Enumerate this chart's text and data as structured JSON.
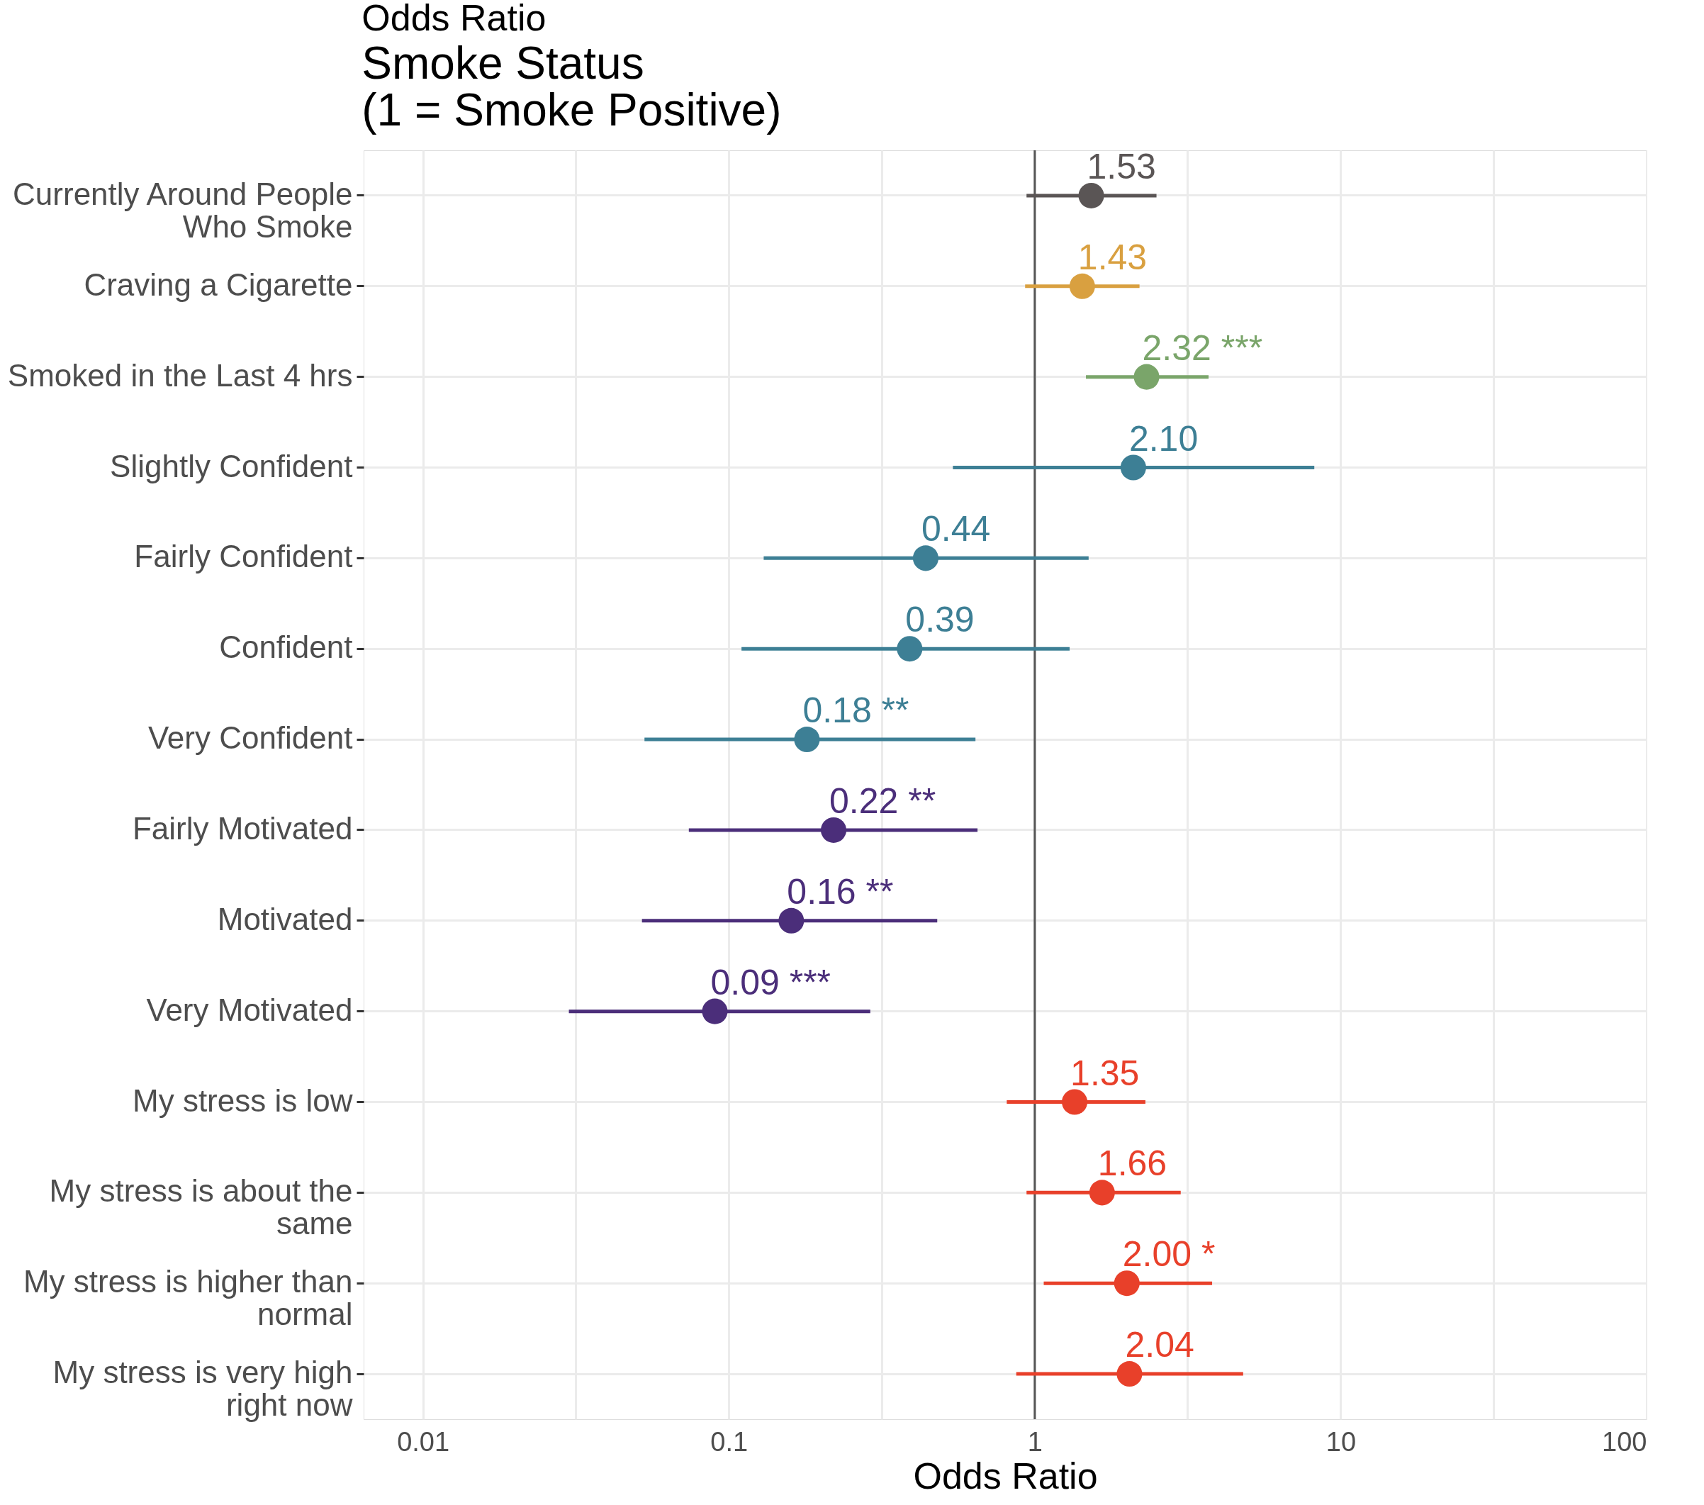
{
  "chart_data": {
    "type": "scatter",
    "orientation": "horizontal",
    "title": "Odds Ratio",
    "subtitle": [
      "Smoke Status",
      " (1 = Smoke Positive)"
    ],
    "xlabel": "Odds Ratio",
    "log": "x",
    "grid": true,
    "marker": "circle",
    "categories": [
      "Currently Around People Who Smoke",
      "Craving a Cigarette",
      "Smoked in the Last 4 hrs",
      "Slightly Confident",
      "Fairly Confident",
      "Confident",
      "Very Confident",
      "Fairly Motivated",
      "Motivated",
      "Very Motivated",
      "My stress is low",
      "My stress is about the same",
      "My stress is higher than normal",
      "My stress is very high right now"
    ],
    "values": [
      1.53,
      1.43,
      2.32,
      2.1,
      0.44,
      0.39,
      0.18,
      0.22,
      0.16,
      0.09,
      1.35,
      1.66,
      2.0,
      2.04
    ],
    "errors": [
      [
        0.94,
        2.5
      ],
      [
        0.93,
        2.2
      ],
      [
        1.47,
        3.7
      ],
      [
        0.54,
        8.2
      ],
      [
        0.13,
        1.5
      ],
      [
        0.11,
        1.3
      ],
      [
        0.053,
        0.64
      ],
      [
        0.074,
        0.65
      ],
      [
        0.052,
        0.48
      ],
      [
        0.03,
        0.29
      ],
      [
        0.81,
        2.3
      ],
      [
        0.94,
        3.0
      ],
      [
        1.07,
        3.8
      ],
      [
        0.87,
        4.8
      ]
    ],
    "value_labels": [
      "1.53",
      "1.43",
      "2.32 ***",
      "2.10",
      "0.44",
      "0.39",
      "0.18 **",
      "0.22 **",
      "0.16 **",
      "0.09 ***",
      "1.35",
      "1.66",
      "2.00 *",
      "2.04"
    ],
    "colors": [
      "#5a5555",
      "#d9a040",
      "#7aa56a",
      "#3d7f95",
      "#3d7f95",
      "#3d7f95",
      "#3d7f95",
      "#4b2e7a",
      "#4b2e7a",
      "#4b2e7a",
      "#e8402a",
      "#e8402a",
      "#e8402a",
      "#e8402a"
    ],
    "xlim": [
      0.0064,
      100
    ],
    "xticks": [
      0.01,
      {
        "value": 0.0316,
        "label": null
      },
      0.1,
      {
        "value": 0.316,
        "label": null
      },
      1,
      {
        "value": 3.16,
        "label": null
      },
      10,
      {
        "value": 31.6,
        "label": null
      },
      100
    ],
    "ref_lines": [
      {
        "axis": "x",
        "value": 1,
        "color": "#555555"
      }
    ]
  }
}
